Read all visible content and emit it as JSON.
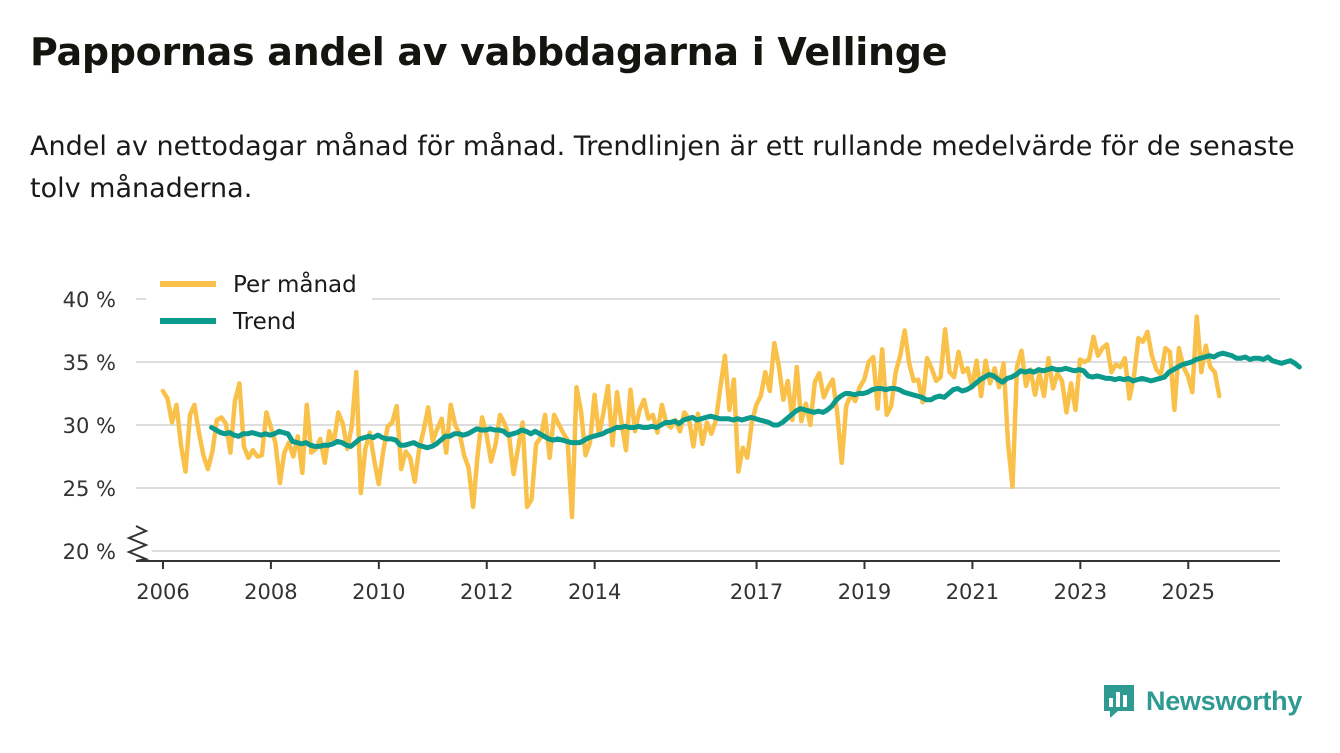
{
  "title": "Pappornas andel av vabbdagarna i Vellinge",
  "subtitle": "Andel av nettodagar månad för månad. Trendlinjen är ett rullande medelvärde för de senaste tolv månaderna.",
  "brand": {
    "name": "Newsworthy",
    "icon": "newsworthy-logo-icon"
  },
  "colors": {
    "per_month": "#f9c14a",
    "trend": "#0c9a8d",
    "grid": "#dddddd",
    "axis": "#333333",
    "brand": "#2f9a92"
  },
  "chart_data": {
    "type": "line",
    "title": "Pappornas andel av vabbdagarna i Vellinge",
    "xlabel": "",
    "ylabel": "",
    "ylim": [
      20,
      40
    ],
    "y_axis_break": true,
    "yticks": [
      20,
      25,
      30,
      35,
      40
    ],
    "ytick_labels": [
      "20 %",
      "25 %",
      "30 %",
      "35 %",
      "40 %"
    ],
    "xticks": [
      2006,
      2008,
      2010,
      2012,
      2014,
      2017,
      2019,
      2021,
      2023,
      2025
    ],
    "xtick_labels": [
      "2006",
      "2008",
      "2010",
      "2012",
      "2014",
      "2017",
      "2019",
      "2021",
      "2023",
      "2025"
    ],
    "xlim": [
      2005.5,
      2026.7
    ],
    "legend_position": "top-left",
    "series": [
      {
        "name": "Per månad",
        "x_start": 2006.0,
        "step": 0.0833,
        "values": [
          32.7,
          32.1,
          30.2,
          31.6,
          28.4,
          26.3,
          30.8,
          31.6,
          29.4,
          27.6,
          26.5,
          27.9,
          30.4,
          30.6,
          30.1,
          27.8,
          31.9,
          33.3,
          28.3,
          27.4,
          28.0,
          27.5,
          27.6,
          31.0,
          29.8,
          28.6,
          25.4,
          27.8,
          28.6,
          27.5,
          29.1,
          26.2,
          31.6,
          27.8,
          28.1,
          28.9,
          27.0,
          29.5,
          28.6,
          31.0,
          30.1,
          28.1,
          29.9,
          34.2,
          24.6,
          28.1,
          29.4,
          27.2,
          25.3,
          27.9,
          29.9,
          30.2,
          31.5,
          26.5,
          27.9,
          27.4,
          25.5,
          28.1,
          29.6,
          31.4,
          28.7,
          29.7,
          30.5,
          27.8,
          31.6,
          30.0,
          29.3,
          27.6,
          26.6,
          23.5,
          27.6,
          30.6,
          29.2,
          27.1,
          28.5,
          30.8,
          30.1,
          29.1,
          26.1,
          28.2,
          30.2,
          23.5,
          24.1,
          28.5,
          29.0,
          30.8,
          27.4,
          30.8,
          30.1,
          29.4,
          28.8,
          22.7,
          33.0,
          31.1,
          27.6,
          28.6,
          32.4,
          29.2,
          31.0,
          33.1,
          28.4,
          32.6,
          30.2,
          28.0,
          32.8,
          29.5,
          31.2,
          32.0,
          30.5,
          30.8,
          29.4,
          31.6,
          30.1,
          29.8,
          30.4,
          29.5,
          31.0,
          30.5,
          28.3,
          30.9,
          28.5,
          30.2,
          29.3,
          30.4,
          33.0,
          35.5,
          31.2,
          33.6,
          26.3,
          28.2,
          27.4,
          30.2,
          31.6,
          32.3,
          34.2,
          32.7,
          36.5,
          34.7,
          32.0,
          33.5,
          30.4,
          34.6,
          30.3,
          31.7,
          30.0,
          33.4,
          34.1,
          32.2,
          33.0,
          33.6,
          31.0,
          27.0,
          31.5,
          32.4,
          31.9,
          33.0,
          33.6,
          35.0,
          35.4,
          31.3,
          36.0,
          30.8,
          31.5,
          34.2,
          35.5,
          37.5,
          34.9,
          33.5,
          33.6,
          31.8,
          35.3,
          34.5,
          33.5,
          33.8,
          37.6,
          34.2,
          33.8,
          35.8,
          34.2,
          34.5,
          33.0,
          35.1,
          32.3,
          35.1,
          33.3,
          34.5,
          33.0,
          34.9,
          28.5,
          25.1,
          34.6,
          35.9,
          33.1,
          34.4,
          32.4,
          34.1,
          32.3,
          35.3,
          32.9,
          34.1,
          33.5,
          31.0,
          33.3,
          31.2,
          35.2,
          35.0,
          35.2,
          37.0,
          35.5,
          36.1,
          36.4,
          34.2,
          34.8,
          34.6,
          35.3,
          32.1,
          33.8,
          36.9,
          36.6,
          37.4,
          35.5,
          34.4,
          34.0,
          36.1,
          35.8,
          31.2,
          36.1,
          34.6,
          33.9,
          32.6,
          38.6,
          34.2,
          36.3,
          34.6,
          34.2,
          32.3
        ]
      },
      {
        "name": "Trend",
        "x_start": 2006.9,
        "step": 0.0833,
        "values": [
          29.8,
          29.6,
          29.4,
          29.3,
          29.4,
          29.2,
          29.1,
          29.3,
          29.3,
          29.4,
          29.3,
          29.2,
          29.3,
          29.2,
          29.3,
          29.5,
          29.4,
          29.3,
          28.7,
          28.6,
          28.5,
          28.6,
          28.4,
          28.3,
          28.3,
          28.4,
          28.4,
          28.5,
          28.7,
          28.6,
          28.4,
          28.3,
          28.6,
          28.9,
          29.0,
          29.1,
          29.0,
          29.2,
          29.0,
          28.9,
          28.9,
          28.8,
          28.4,
          28.4,
          28.5,
          28.6,
          28.4,
          28.3,
          28.2,
          28.3,
          28.5,
          28.8,
          29.1,
          29.1,
          29.3,
          29.3,
          29.2,
          29.3,
          29.5,
          29.7,
          29.6,
          29.6,
          29.7,
          29.6,
          29.6,
          29.5,
          29.2,
          29.3,
          29.4,
          29.6,
          29.5,
          29.3,
          29.5,
          29.3,
          29.1,
          28.9,
          28.8,
          28.9,
          28.8,
          28.7,
          28.6,
          28.6,
          28.6,
          28.8,
          29.0,
          29.1,
          29.2,
          29.3,
          29.5,
          29.6,
          29.8,
          29.8,
          29.9,
          29.8,
          29.8,
          29.9,
          29.8,
          29.8,
          29.9,
          29.8,
          30.0,
          30.2,
          30.2,
          30.3,
          30.1,
          30.4,
          30.5,
          30.6,
          30.4,
          30.5,
          30.6,
          30.7,
          30.6,
          30.5,
          30.5,
          30.5,
          30.4,
          30.5,
          30.4,
          30.5,
          30.6,
          30.5,
          30.4,
          30.3,
          30.2,
          30.0,
          30.0,
          30.2,
          30.5,
          30.8,
          31.1,
          31.3,
          31.2,
          31.1,
          31.0,
          31.1,
          31.0,
          31.2,
          31.5,
          32.0,
          32.3,
          32.5,
          32.5,
          32.4,
          32.5,
          32.5,
          32.6,
          32.8,
          32.9,
          32.9,
          32.8,
          32.9,
          32.9,
          32.8,
          32.6,
          32.5,
          32.4,
          32.3,
          32.2,
          32.0,
          32.0,
          32.2,
          32.3,
          32.2,
          32.5,
          32.8,
          32.9,
          32.7,
          32.8,
          33.0,
          33.3,
          33.6,
          33.8,
          34.0,
          33.9,
          33.6,
          33.4,
          33.7,
          33.8,
          34.0,
          34.3,
          34.2,
          34.3,
          34.2,
          34.4,
          34.3,
          34.4,
          34.5,
          34.4,
          34.4,
          34.5,
          34.4,
          34.3,
          34.4,
          34.3,
          33.9,
          33.8,
          33.9,
          33.8,
          33.7,
          33.7,
          33.6,
          33.7,
          33.6,
          33.7,
          33.5,
          33.6,
          33.7,
          33.6,
          33.5,
          33.6,
          33.7,
          33.8,
          34.2,
          34.4,
          34.6,
          34.8,
          34.9,
          35.0,
          35.2,
          35.3,
          35.4,
          35.5,
          35.4,
          35.6,
          35.7,
          35.6,
          35.5,
          35.3,
          35.3,
          35.4,
          35.2,
          35.3,
          35.3,
          35.2,
          35.4,
          35.1,
          35.0,
          34.9,
          35.0,
          35.1,
          34.9,
          34.6
        ]
      }
    ]
  }
}
